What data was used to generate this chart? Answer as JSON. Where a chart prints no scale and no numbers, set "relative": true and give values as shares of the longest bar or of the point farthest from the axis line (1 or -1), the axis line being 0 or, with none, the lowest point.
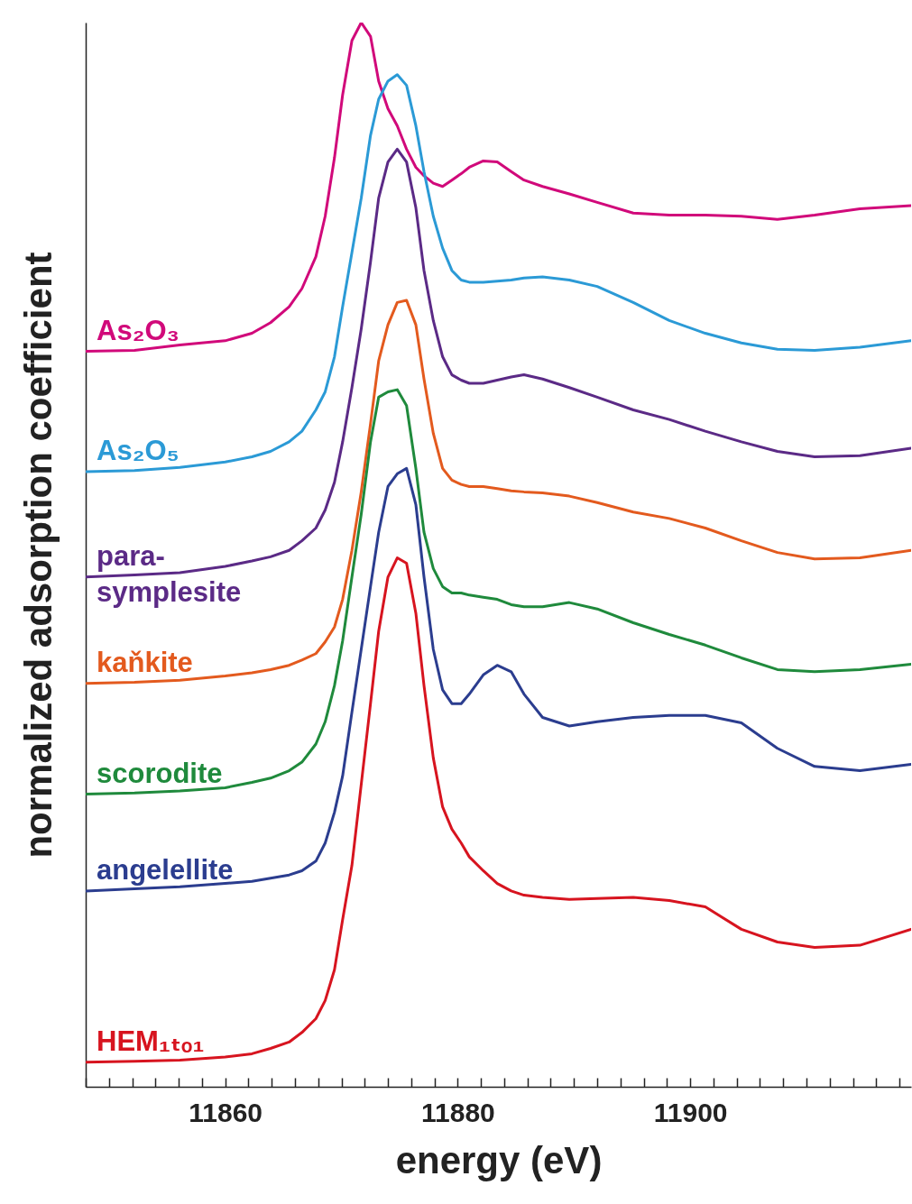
{
  "chart_data": {
    "type": "line",
    "relative": true,
    "xlabel": "energy (eV)",
    "ylabel": "normalized adsorption coefficient",
    "legend": false,
    "grid": false,
    "marker": "none",
    "line_style": "solid",
    "xlim": [
      11848,
      11919
    ],
    "xticks": [
      {
        "value": 11848,
        "label": null
      },
      {
        "value": 11850,
        "label": null
      },
      {
        "value": 11852,
        "label": null
      },
      {
        "value": 11854,
        "label": null
      },
      {
        "value": 11856,
        "label": null
      },
      {
        "value": 11858,
        "label": null
      },
      11860,
      {
        "value": 11862,
        "label": null
      },
      {
        "value": 11864,
        "label": null
      },
      {
        "value": 11866,
        "label": null
      },
      {
        "value": 11868,
        "label": null
      },
      {
        "value": 11870,
        "label": null
      },
      {
        "value": 11872,
        "label": null
      },
      {
        "value": 11874,
        "label": null
      },
      {
        "value": 11876,
        "label": null
      },
      {
        "value": 11878,
        "label": null
      },
      11880,
      {
        "value": 11882,
        "label": null
      },
      {
        "value": 11884,
        "label": null
      },
      {
        "value": 11886,
        "label": null
      },
      {
        "value": 11888,
        "label": null
      },
      {
        "value": 11890,
        "label": null
      },
      {
        "value": 11892,
        "label": null
      },
      {
        "value": 11894,
        "label": null
      },
      {
        "value": 11896,
        "label": null
      },
      {
        "value": 11898,
        "label": null
      },
      11900,
      {
        "value": 11902,
        "label": null
      },
      {
        "value": 11904,
        "label": null
      },
      {
        "value": 11906,
        "label": null
      },
      {
        "value": 11908,
        "label": null
      },
      {
        "value": 11910,
        "label": null
      },
      {
        "value": 11912,
        "label": null
      },
      {
        "value": 11914,
        "label": null
      },
      {
        "value": 11916,
        "label": null
      },
      {
        "value": 11918,
        "label": null
      }
    ],
    "x": [
      11848,
      11852.2,
      11856.1,
      11860,
      11862.3,
      11863.9,
      11865.5,
      11866.6,
      11867.8,
      11868.6,
      11869.4,
      11870.1,
      11870.9,
      11871.7,
      11872.5,
      11873.2,
      11874.0,
      11874.8,
      11875.6,
      11876.4,
      11877.1,
      11877.9,
      11878.7,
      11879.5,
      11880.3,
      11881.0,
      11882.2,
      11883.4,
      11884.6,
      11885.7,
      11887.3,
      11889.6,
      11892.0,
      11895.1,
      11898.2,
      11901.3,
      11904.4,
      11907.5,
      11910.7,
      11914.6,
      11919
    ],
    "series": [
      {
        "name": "As₂O₃",
        "color": "#d1097a",
        "values": [
          0.691,
          0.692,
          0.697,
          0.701,
          0.708,
          0.718,
          0.733,
          0.75,
          0.78,
          0.818,
          0.873,
          0.932,
          0.983,
          1.0,
          0.987,
          0.945,
          0.919,
          0.903,
          0.881,
          0.864,
          0.856,
          0.849,
          0.846,
          0.852,
          0.858,
          0.864,
          0.87,
          0.869,
          0.86,
          0.852,
          0.846,
          0.839,
          0.831,
          0.821,
          0.819,
          0.819,
          0.818,
          0.815,
          0.819,
          0.825,
          0.828
        ]
      },
      {
        "name": "As₂O₅",
        "color": "#2b9ad6",
        "values": [
          0.578,
          0.579,
          0.582,
          0.587,
          0.592,
          0.597,
          0.606,
          0.616,
          0.636,
          0.653,
          0.686,
          0.733,
          0.784,
          0.835,
          0.894,
          0.928,
          0.945,
          0.951,
          0.941,
          0.903,
          0.86,
          0.818,
          0.788,
          0.767,
          0.758,
          0.756,
          0.756,
          0.757,
          0.758,
          0.76,
          0.761,
          0.758,
          0.752,
          0.737,
          0.72,
          0.708,
          0.699,
          0.693,
          0.692,
          0.695,
          0.701
        ]
      },
      {
        "name": "para-symplesite",
        "color": "#5b2a86",
        "values": [
          0.479,
          0.481,
          0.483,
          0.489,
          0.494,
          0.498,
          0.504,
          0.513,
          0.525,
          0.542,
          0.568,
          0.606,
          0.657,
          0.712,
          0.775,
          0.835,
          0.869,
          0.881,
          0.869,
          0.826,
          0.767,
          0.72,
          0.686,
          0.669,
          0.664,
          0.661,
          0.661,
          0.664,
          0.667,
          0.669,
          0.665,
          0.657,
          0.648,
          0.636,
          0.627,
          0.616,
          0.606,
          0.597,
          0.592,
          0.593,
          0.6
        ]
      },
      {
        "name": "kaňkite",
        "color": "#e35a1e",
        "values": [
          0.379,
          0.38,
          0.382,
          0.386,
          0.389,
          0.392,
          0.396,
          0.401,
          0.407,
          0.418,
          0.432,
          0.458,
          0.504,
          0.559,
          0.623,
          0.682,
          0.716,
          0.737,
          0.739,
          0.716,
          0.665,
          0.614,
          0.581,
          0.57,
          0.566,
          0.564,
          0.564,
          0.562,
          0.56,
          0.559,
          0.558,
          0.555,
          0.549,
          0.54,
          0.534,
          0.525,
          0.513,
          0.502,
          0.496,
          0.497,
          0.504
        ]
      },
      {
        "name": "scorodite",
        "color": "#1f8a3c",
        "values": [
          0.275,
          0.276,
          0.278,
          0.281,
          0.286,
          0.29,
          0.297,
          0.305,
          0.322,
          0.343,
          0.377,
          0.419,
          0.479,
          0.538,
          0.606,
          0.648,
          0.653,
          0.655,
          0.64,
          0.581,
          0.521,
          0.487,
          0.47,
          0.464,
          0.464,
          0.462,
          0.46,
          0.458,
          0.453,
          0.451,
          0.451,
          0.455,
          0.449,
          0.436,
          0.425,
          0.415,
          0.403,
          0.392,
          0.39,
          0.392,
          0.397
        ]
      },
      {
        "name": "angelellite",
        "color": "#2b3d8f",
        "values": [
          0.184,
          0.186,
          0.188,
          0.191,
          0.193,
          0.196,
          0.199,
          0.203,
          0.212,
          0.229,
          0.258,
          0.292,
          0.352,
          0.411,
          0.47,
          0.521,
          0.564,
          0.576,
          0.581,
          0.547,
          0.479,
          0.411,
          0.373,
          0.36,
          0.36,
          0.369,
          0.387,
          0.396,
          0.39,
          0.369,
          0.347,
          0.339,
          0.343,
          0.347,
          0.349,
          0.349,
          0.342,
          0.318,
          0.301,
          0.297,
          0.303
        ]
      },
      {
        "name": "HEM₁ₜₒ₁",
        "color": "#d7141f",
        "values": [
          0.023,
          0.024,
          0.025,
          0.028,
          0.031,
          0.036,
          0.042,
          0.051,
          0.064,
          0.081,
          0.11,
          0.157,
          0.208,
          0.284,
          0.36,
          0.428,
          0.479,
          0.497,
          0.492,
          0.445,
          0.377,
          0.309,
          0.263,
          0.242,
          0.229,
          0.216,
          0.203,
          0.191,
          0.184,
          0.18,
          0.178,
          0.176,
          0.177,
          0.178,
          0.175,
          0.169,
          0.148,
          0.136,
          0.131,
          0.133,
          0.148
        ]
      }
    ]
  }
}
